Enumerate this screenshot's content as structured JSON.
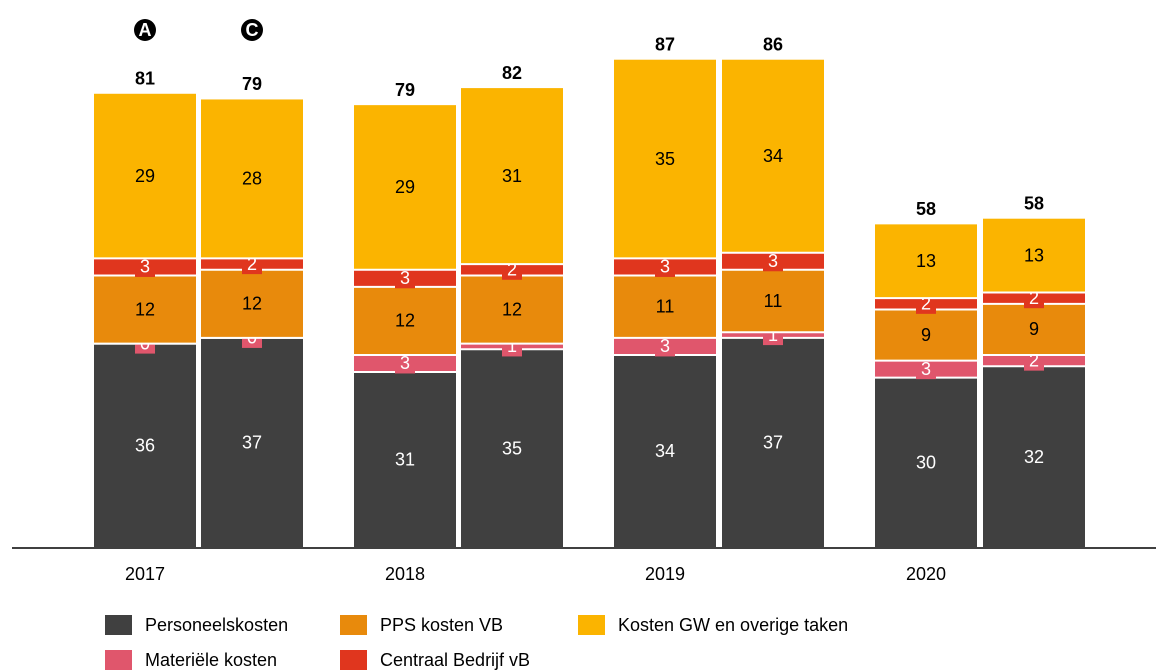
{
  "chart_data": {
    "type": "stacked_bar",
    "categories": [
      "2017",
      null,
      "2018",
      null,
      "2019",
      null,
      "2020",
      null
    ],
    "bar_markers": [
      "A",
      "C",
      null,
      null,
      null,
      null,
      null,
      null
    ],
    "series": [
      {
        "name": "Personeelskosten",
        "color": "#404040",
        "values": [
          36,
          37,
          31,
          35,
          34,
          37,
          30,
          32
        ]
      },
      {
        "name": "Materiële kosten",
        "color": "#e0566c",
        "values": [
          0,
          0,
          3,
          1,
          3,
          1,
          3,
          2
        ]
      },
      {
        "name": "PPS kosten VB",
        "color": "#e88a0c",
        "values": [
          12,
          12,
          12,
          12,
          11,
          11,
          9,
          9
        ]
      },
      {
        "name": "Centraal Bedrijf vB",
        "color": "#e0361e",
        "values": [
          3,
          2,
          3,
          2,
          3,
          3,
          2,
          2
        ]
      },
      {
        "name": "Kosten GW en overige taken",
        "color": "#fbb400",
        "values": [
          29,
          28,
          29,
          31,
          35,
          34,
          13,
          13
        ]
      }
    ],
    "totals": [
      81,
      79,
      79,
      82,
      87,
      86,
      58,
      58
    ],
    "ylim": [
      0,
      90
    ]
  }
}
